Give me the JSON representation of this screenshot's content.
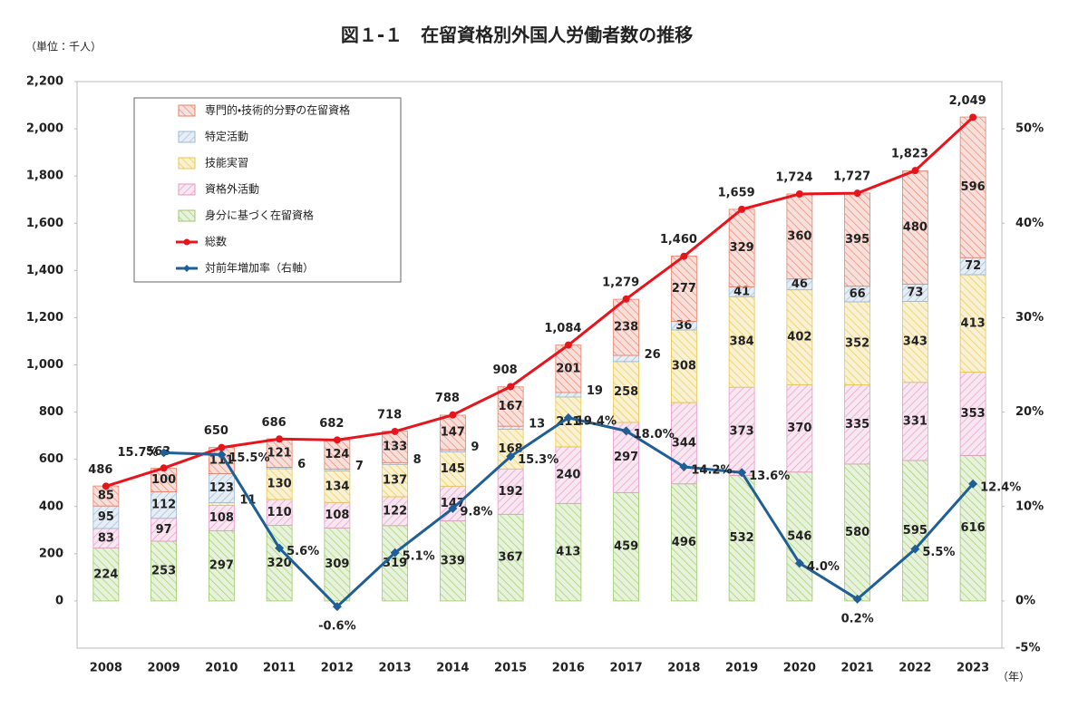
{
  "chart_data": {
    "type": "bar",
    "title": "図１-１　在留資格別外国人労働者数の推移",
    "y_unit": "（単位：千人）",
    "x_unit": "（年）",
    "categories": [
      "2008",
      "2009",
      "2010",
      "2011",
      "2012",
      "2013",
      "2014",
      "2015",
      "2016",
      "2017",
      "2018",
      "2019",
      "2020",
      "2021",
      "2022",
      "2023"
    ],
    "stacked": true,
    "legend": "upper left",
    "grid": false,
    "ylim": [
      -200,
      2200
    ],
    "yticks": [
      0,
      200,
      400,
      600,
      800,
      {
        "value": 1000,
        "label": "1,000"
      },
      {
        "value": 1200,
        "label": "1,200"
      },
      {
        "value": 1400,
        "label": "1,400"
      },
      {
        "value": 1600,
        "label": "1,600"
      },
      {
        "value": 1800,
        "label": "1,800"
      },
      {
        "value": 2000,
        "label": "2,000"
      },
      {
        "value": 2200,
        "label": "2,200"
      }
    ],
    "y2lim": [
      -5,
      55
    ],
    "y2ticks": [
      {
        "value": -5,
        "label": "-5%"
      },
      {
        "value": 0,
        "label": "0%"
      },
      {
        "value": 10,
        "label": "10%"
      },
      {
        "value": 20,
        "label": "20%"
      },
      {
        "value": 30,
        "label": "30%"
      },
      {
        "value": 40,
        "label": "40%"
      },
      {
        "value": 50,
        "label": "50%"
      }
    ],
    "series": [
      {
        "name": "身分に基づく在留資格",
        "type": "bar",
        "color": "#9fca6a",
        "values": [
          224,
          253,
          297,
          320,
          309,
          319,
          339,
          367,
          413,
          459,
          496,
          532,
          546,
          580,
          595,
          616
        ]
      },
      {
        "name": "資格外活動",
        "type": "bar",
        "color": "#e59ac8",
        "values": [
          83,
          97,
          108,
          110,
          108,
          122,
          147,
          192,
          240,
          297,
          344,
          373,
          370,
          335,
          331,
          353
        ]
      },
      {
        "name": "技能実習",
        "type": "bar",
        "color": "#e8c84a",
        "values": [
          null,
          null,
          11,
          130,
          134,
          137,
          145,
          168,
          211,
          258,
          308,
          384,
          402,
          352,
          343,
          413
        ]
      },
      {
        "name": "特定活動",
        "type": "bar",
        "color": "#9db8d2",
        "values": [
          95,
          112,
          123,
          6,
          7,
          8,
          9,
          13,
          19,
          26,
          36,
          41,
          46,
          66,
          73,
          72
        ]
      },
      {
        "name": "専門的・技術的分野の在留資格",
        "type": "bar",
        "color": "#e8806a",
        "values": [
          85,
          100,
          111,
          121,
          124,
          133,
          147,
          167,
          201,
          238,
          277,
          329,
          360,
          395,
          480,
          596
        ]
      },
      {
        "name": "総数",
        "type": "line",
        "color": "#e8141c",
        "values": [
          486,
          563,
          650,
          686,
          682,
          718,
          788,
          908,
          1084,
          1279,
          1460,
          1659,
          1724,
          1727,
          1823,
          2049
        ],
        "value_labels": [
          "486",
          "563",
          "650",
          "686",
          "682",
          "718",
          "788",
          "908",
          "1,084",
          "1,279",
          "1,460",
          "1,659",
          "1,724",
          "1,727",
          "1,823",
          "2,049"
        ]
      },
      {
        "name": "対前年増加率（右軸）",
        "type": "line",
        "axis": "y2",
        "color": "#1f5f96",
        "values": [
          null,
          15.7,
          15.5,
          5.6,
          -0.6,
          5.1,
          9.8,
          15.3,
          19.4,
          18.0,
          14.2,
          13.6,
          4.0,
          0.2,
          5.5,
          12.4
        ],
        "value_labels": [
          null,
          "15.7%",
          "15.5%",
          "5.6%",
          "-0.6%",
          "5.1%",
          "9.8%",
          "15.3%",
          "19.4%",
          "18.0%",
          "14.2%",
          "13.6%",
          "4.0%",
          "0.2%",
          "5.5%",
          "12.4%"
        ]
      }
    ]
  }
}
